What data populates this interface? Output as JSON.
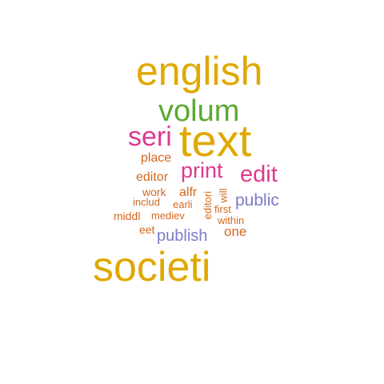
{
  "words": [
    {
      "text": "english",
      "color": "#E0A800"
    },
    {
      "text": "volum",
      "color": "#5CA832"
    },
    {
      "text": "text",
      "color": "#E0A800"
    },
    {
      "text": "seri",
      "color": "#E0388F"
    },
    {
      "text": "print",
      "color": "#E0388F"
    },
    {
      "text": "edit",
      "color": "#E0388F"
    },
    {
      "text": "place",
      "color": "#D2691E"
    },
    {
      "text": "editor",
      "color": "#D2691E"
    },
    {
      "text": "work",
      "color": "#D2691E"
    },
    {
      "text": "alfr",
      "color": "#D2691E"
    },
    {
      "text": "editori",
      "color": "#D2691E"
    },
    {
      "text": "will",
      "color": "#D2691E"
    },
    {
      "text": "public",
      "color": "#7B7BC8"
    },
    {
      "text": "includ",
      "color": "#D2691E"
    },
    {
      "text": "earli",
      "color": "#D2691E"
    },
    {
      "text": "first",
      "color": "#D2691E"
    },
    {
      "text": "middl",
      "color": "#D2691E"
    },
    {
      "text": "mediev",
      "color": "#D2691E"
    },
    {
      "text": "within",
      "color": "#D2691E"
    },
    {
      "text": "eet",
      "color": "#D2691E"
    },
    {
      "text": "publish",
      "color": "#7B7BC8"
    },
    {
      "text": "one",
      "color": "#D2691E"
    },
    {
      "text": "societi",
      "color": "#E0A800"
    }
  ]
}
